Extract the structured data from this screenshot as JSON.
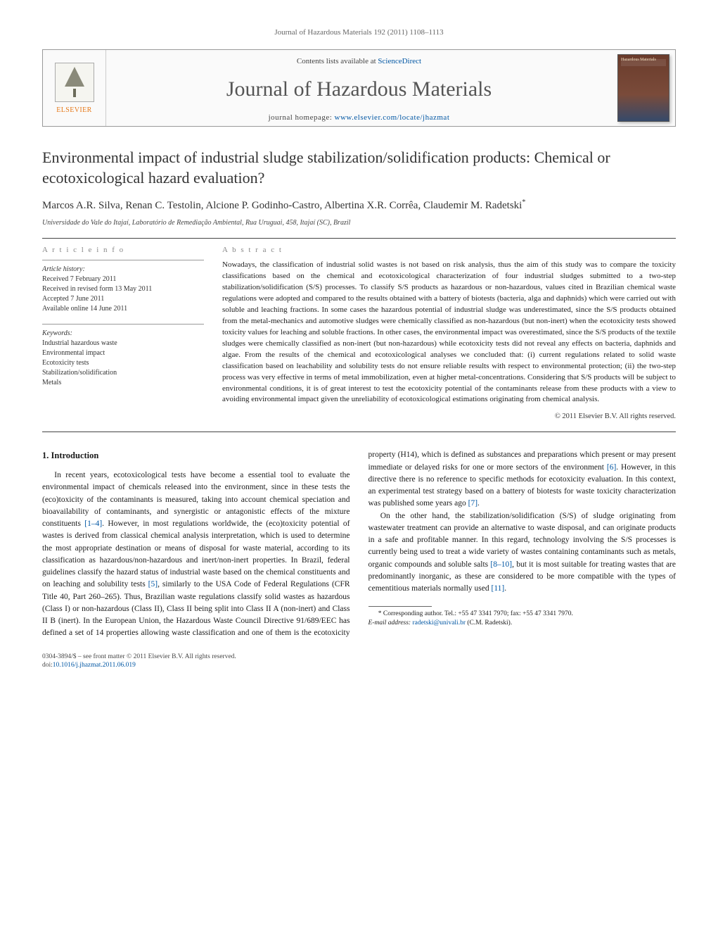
{
  "running_head": "Journal of Hazardous Materials 192 (2011) 1108–1113",
  "masthead": {
    "publisher": "ELSEVIER",
    "contents_prefix": "Contents lists available at ",
    "contents_link": "ScienceDirect",
    "journal_name": "Journal of Hazardous Materials",
    "homepage_prefix": "journal homepage: ",
    "homepage_url": "www.elsevier.com/locate/jhazmat",
    "cover_label": "Hazardous Materials"
  },
  "article": {
    "title": "Environmental impact of industrial sludge stabilization/solidification products: Chemical or ecotoxicological hazard evaluation?",
    "authors": "Marcos A.R. Silva, Renan C. Testolin, Alcione P. Godinho-Castro, Albertina X.R. Corrêa, Claudemir M. Radetski",
    "corr_mark": "*",
    "affiliation": "Universidade do Vale do Itajaí, Laboratório de Remediação Ambiental, Rua Uruguai, 458, Itajaí (SC), Brazil"
  },
  "info": {
    "article_info_heading": "a r t i c l e   i n f o",
    "history_label": "Article history:",
    "received": "Received 7 February 2011",
    "received_revised": "Received in revised form 13 May 2011",
    "accepted": "Accepted 7 June 2011",
    "online": "Available online 14 June 2011",
    "keywords_label": "Keywords:",
    "keywords": [
      "Industrial hazardous waste",
      "Environmental impact",
      "Ecotoxicity tests",
      "Stabilization/solidification",
      "Metals"
    ]
  },
  "abstract": {
    "heading": "a b s t r a c t",
    "text": "Nowadays, the classification of industrial solid wastes is not based on risk analysis, thus the aim of this study was to compare the toxicity classifications based on the chemical and ecotoxicological characterization of four industrial sludges submitted to a two-step stabilization/solidification (S/S) processes. To classify S/S products as hazardous or non-hazardous, values cited in Brazilian chemical waste regulations were adopted and compared to the results obtained with a battery of biotests (bacteria, alga and daphnids) which were carried out with soluble and leaching fractions. In some cases the hazardous potential of industrial sludge was underestimated, since the S/S products obtained from the metal-mechanics and automotive sludges were chemically classified as non-hazardous (but non-inert) when the ecotoxicity tests showed toxicity values for leaching and soluble fractions. In other cases, the environmental impact was overestimated, since the S/S products of the textile sludges were chemically classified as non-inert (but non-hazardous) while ecotoxicity tests did not reveal any effects on bacteria, daphnids and algae. From the results of the chemical and ecotoxicological analyses we concluded that: (i) current regulations related to solid waste classification based on leachability and solubility tests do not ensure reliable results with respect to environmental protection; (ii) the two-step process was very effective in terms of metal immobilization, even at higher metal-concentrations. Considering that S/S products will be subject to environmental conditions, it is of great interest to test the ecotoxicity potential of the contaminants release from these products with a view to avoiding environmental impact given the unreliability of ecotoxicological estimations originating from chemical analysis.",
    "copyright": "© 2011 Elsevier B.V. All rights reserved."
  },
  "body": {
    "section_heading": "1. Introduction",
    "p1a": "In recent years, ecotoxicological tests have become a essential tool to evaluate the environmental impact of chemicals released into the environment, since in these tests the (eco)toxicity of the contaminants is measured, taking into account chemical speciation and bioavailability of contaminants, and synergistic or antagonistic effects of the mixture constituents ",
    "cite1": "[1–4]",
    "p1b": ". However, in most regulations worldwide, the (eco)toxicity potential of wastes is derived from classical chemical analysis interpretation, which is used to determine the most appropriate destination or means of disposal for waste material, according to its classification as hazardous/non-hazardous and inert/non-inert properties. In Brazil, federal guidelines classify the hazard status of industrial waste based on the chemical constituents and on leaching and solubility tests ",
    "cite5": "[5]",
    "p1c": ", similarly to the USA Code of Federal Regulations (CFR Title 40, Part 260–265). Thus, Brazilian waste regulations clas",
    "p2a": "sify solid wastes as hazardous (Class I) or non-hazardous (Class II), Class II being split into Class II A (non-inert) and Class II B (inert). In the European Union, the Hazardous Waste Council Directive 91/689/EEC has defined a set of 14 properties allowing waste classification and one of them is the ecotoxicity property (H14), which is defined as substances and preparations which present or may present immediate or delayed risks for one or more sectors of the environment ",
    "cite6": "[6]",
    "p2b": ". However, in this directive there is no reference to specific methods for ecotoxicity evaluation. In this context, an experimental test strategy based on a battery of biotests for waste toxicity characterization was published some years ago ",
    "cite7": "[7]",
    "p2c": ".",
    "p3a": "On the other hand, the stabilization/solidification (S/S) of sludge originating from wastewater treatment can provide an alternative to waste disposal, and can originate products in a safe and profitable manner. In this regard, technology involving the S/S processes is currently being used to treat a wide variety of wastes containing contaminants such as metals, organic compounds and soluble salts ",
    "cite8": "[8–10]",
    "p3b": ", but it is most suitable for treating wastes that are predominantly inorganic, as these are considered to be more compatible with the types of cementitious materials normally used ",
    "cite11": "[11]",
    "p3c": "."
  },
  "footnote": {
    "corr_label": "* Corresponding author. Tel.: +55 47 3341 7970; fax: +55 47 3341 7970.",
    "email_label": "E-mail address: ",
    "email": "radetski@univali.br",
    "email_paren": " (C.M. Radetski)."
  },
  "footer": {
    "issn_line": "0304-3894/$ – see front matter © 2011 Elsevier B.V. All rights reserved.",
    "doi_prefix": "doi:",
    "doi": "10.1016/j.jhazmat.2011.06.019"
  },
  "colors": {
    "link": "#0056a3",
    "publisher": "#e67817",
    "heading_grey": "#888888",
    "text": "#1a1a1a",
    "rule": "#444444"
  },
  "typography": {
    "body_pt": 11.5,
    "abstract_pt": 11,
    "title_pt": 22,
    "journal_name_pt": 30
  }
}
